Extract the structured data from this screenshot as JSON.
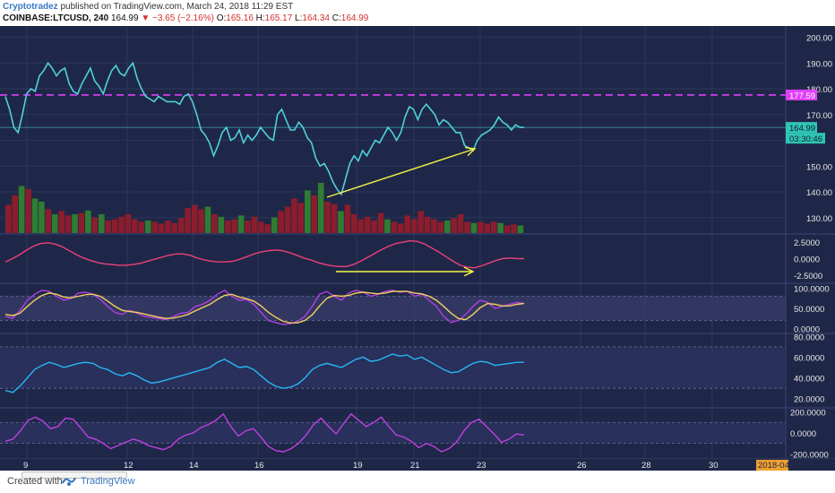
{
  "header": {
    "author": "Cryptotradez",
    "published_text": "published on TradingView.com, March 24, 2018 11:29 EST",
    "symbol": "COINBASE:LTCUSD, 240",
    "last": "164.99",
    "change": "▼ −3.65 (−2.16%)",
    "o_label": "O:",
    "o_value": "165.16",
    "h_label": "H:",
    "h_value": "165.17",
    "l_label": "L:",
    "l_value": "164.34",
    "c_label": "C:",
    "c_value": "164.99"
  },
  "footer": {
    "created": "Created with",
    "brand": "TradingView"
  },
  "colors": {
    "background": "#1f2748",
    "price_line": "#4fd1d9",
    "resistance": "#e040fb",
    "volume_up": "#2e7d32",
    "volume_down": "#8b1d2c",
    "osc1": "#ec407a",
    "stoch_k": "#b040e0",
    "stoch_d": "#f2d15c",
    "rsi": "#29b6f6",
    "cci": "#c040e0",
    "annotation": "#f5f542",
    "axis_text": "#e6e6e6"
  },
  "price_axis": {
    "ticks": [
      "200.00",
      "190.00",
      "180.00",
      "170.00",
      "150.00",
      "140.00",
      "130.00"
    ],
    "resistance_label": "177.59",
    "last_label": "164.99",
    "countdown_label": "03:30:46"
  },
  "price_series": [
    177,
    172,
    165,
    163,
    170,
    178,
    180,
    179,
    185,
    187,
    190,
    188,
    185,
    187,
    188,
    182,
    179,
    178,
    182,
    185,
    188,
    183,
    181,
    178,
    183,
    187,
    189,
    186,
    185,
    188,
    190,
    184,
    180,
    177,
    176,
    175,
    177,
    176,
    175,
    175,
    175,
    174,
    177,
    178,
    175,
    170,
    164,
    162,
    159,
    154,
    158,
    163,
    165,
    160,
    161,
    164,
    159,
    162,
    160,
    162,
    165,
    163,
    161,
    160,
    170,
    172,
    168,
    164,
    164,
    167,
    165,
    161,
    159,
    153,
    150,
    151,
    148,
    144,
    141,
    139,
    145,
    151,
    154,
    152,
    156,
    154,
    157,
    160,
    159,
    162,
    165,
    163,
    160,
    163,
    169,
    173,
    172,
    168,
    172,
    174,
    172,
    170,
    166,
    168,
    167,
    165,
    163,
    163,
    158,
    157,
    156,
    160,
    162,
    163,
    164,
    166,
    169,
    167,
    166,
    164,
    166,
    165,
    165
  ],
  "resistance_value": 177.59,
  "volume_bars": [
    {
      "v": 0.45,
      "up": false
    },
    {
      "v": 0.6,
      "up": false
    },
    {
      "v": 0.75,
      "up": true
    },
    {
      "v": 0.7,
      "up": false
    },
    {
      "v": 0.55,
      "up": true
    },
    {
      "v": 0.5,
      "up": true
    },
    {
      "v": 0.38,
      "up": false
    },
    {
      "v": 0.3,
      "up": true
    },
    {
      "v": 0.35,
      "up": false
    },
    {
      "v": 0.28,
      "up": false
    },
    {
      "v": 0.3,
      "up": true
    },
    {
      "v": 0.32,
      "up": false
    },
    {
      "v": 0.36,
      "up": true
    },
    {
      "v": 0.25,
      "up": false
    },
    {
      "v": 0.3,
      "up": true
    },
    {
      "v": 0.2,
      "up": false
    },
    {
      "v": 0.22,
      "up": false
    },
    {
      "v": 0.26,
      "up": false
    },
    {
      "v": 0.3,
      "up": false
    },
    {
      "v": 0.22,
      "up": false
    },
    {
      "v": 0.18,
      "up": false
    },
    {
      "v": 0.2,
      "up": true
    },
    {
      "v": 0.18,
      "up": false
    },
    {
      "v": 0.15,
      "up": false
    },
    {
      "v": 0.2,
      "up": false
    },
    {
      "v": 0.16,
      "up": false
    },
    {
      "v": 0.24,
      "up": false
    },
    {
      "v": 0.4,
      "up": false
    },
    {
      "v": 0.45,
      "up": false
    },
    {
      "v": 0.38,
      "up": false
    },
    {
      "v": 0.42,
      "up": true
    },
    {
      "v": 0.3,
      "up": false
    },
    {
      "v": 0.26,
      "up": true
    },
    {
      "v": 0.2,
      "up": false
    },
    {
      "v": 0.22,
      "up": false
    },
    {
      "v": 0.28,
      "up": true
    },
    {
      "v": 0.2,
      "up": false
    },
    {
      "v": 0.26,
      "up": false
    },
    {
      "v": 0.18,
      "up": false
    },
    {
      "v": 0.14,
      "up": false
    },
    {
      "v": 0.25,
      "up": true
    },
    {
      "v": 0.35,
      "up": false
    },
    {
      "v": 0.42,
      "up": false
    },
    {
      "v": 0.55,
      "up": false
    },
    {
      "v": 0.48,
      "up": false
    },
    {
      "v": 0.68,
      "up": true
    },
    {
      "v": 0.6,
      "up": false
    },
    {
      "v": 0.8,
      "up": true
    },
    {
      "v": 0.5,
      "up": false
    },
    {
      "v": 0.46,
      "up": false
    },
    {
      "v": 0.35,
      "up": true
    },
    {
      "v": 0.45,
      "up": false
    },
    {
      "v": 0.3,
      "up": false
    },
    {
      "v": 0.22,
      "up": false
    },
    {
      "v": 0.26,
      "up": false
    },
    {
      "v": 0.2,
      "up": false
    },
    {
      "v": 0.32,
      "up": false
    },
    {
      "v": 0.22,
      "up": true
    },
    {
      "v": 0.18,
      "up": false
    },
    {
      "v": 0.15,
      "up": false
    },
    {
      "v": 0.28,
      "up": false
    },
    {
      "v": 0.22,
      "up": false
    },
    {
      "v": 0.35,
      "up": false
    },
    {
      "v": 0.26,
      "up": false
    },
    {
      "v": 0.22,
      "up": false
    },
    {
      "v": 0.18,
      "up": false
    },
    {
      "v": 0.2,
      "up": true
    },
    {
      "v": 0.24,
      "up": false
    },
    {
      "v": 0.3,
      "up": false
    },
    {
      "v": 0.18,
      "up": false
    },
    {
      "v": 0.16,
      "up": true
    },
    {
      "v": 0.18,
      "up": false
    },
    {
      "v": 0.15,
      "up": false
    },
    {
      "v": 0.18,
      "up": false
    },
    {
      "v": 0.16,
      "up": true
    },
    {
      "v": 0.12,
      "up": false
    },
    {
      "v": 0.14,
      "up": false
    },
    {
      "v": 0.12,
      "up": true
    }
  ],
  "osc1_axis": [
    "2.5000",
    "0.0000",
    "-2.5000"
  ],
  "osc1_series": [
    -0.5,
    0.0,
    0.6,
    1.3,
    1.9,
    2.3,
    2.4,
    2.2,
    1.8,
    1.2,
    0.6,
    0.1,
    -0.3,
    -0.6,
    -0.8,
    -0.9,
    -1.0,
    -1.0,
    -0.9,
    -0.7,
    -0.4,
    -0.1,
    0.2,
    0.5,
    0.7,
    0.7,
    0.5,
    0.1,
    -0.2,
    -0.4,
    -0.5,
    -0.5,
    -0.4,
    -0.1,
    0.3,
    0.7,
    1.0,
    1.2,
    1.3,
    1.2,
    0.9,
    0.5,
    0.1,
    -0.2,
    -0.6,
    -0.9,
    -1.1,
    -1.2,
    -1.2,
    -0.9,
    -0.4,
    0.2,
    0.8,
    1.4,
    1.9,
    2.3,
    2.5,
    2.7,
    2.6,
    2.2,
    1.6,
    1.0,
    0.3,
    -0.4,
    -1.0,
    -1.3,
    -1.4,
    -1.1,
    -0.7,
    -0.3,
    0.0,
    0.1,
    0.0,
    0.0
  ],
  "stoch_axis": [
    "100.0000",
    "50.0000",
    "0.0000"
  ],
  "stoch_k": [
    30,
    25,
    45,
    70,
    85,
    95,
    92,
    80,
    70,
    75,
    88,
    90,
    85,
    72,
    55,
    40,
    35,
    45,
    38,
    30,
    28,
    25,
    22,
    30,
    38,
    40,
    55,
    60,
    70,
    85,
    95,
    80,
    70,
    72,
    60,
    40,
    20,
    15,
    10,
    12,
    18,
    30,
    55,
    85,
    92,
    80,
    70,
    88,
    95,
    90,
    80,
    85,
    92,
    95,
    90,
    92,
    80,
    85,
    70,
    55,
    30,
    15,
    20,
    35,
    55,
    70,
    65,
    50,
    55,
    60,
    65,
    62
  ],
  "stoch_d": [
    35,
    32,
    38,
    55,
    70,
    82,
    88,
    85,
    78,
    76,
    80,
    84,
    85,
    80,
    68,
    55,
    45,
    42,
    40,
    36,
    32,
    28,
    25,
    26,
    30,
    35,
    44,
    52,
    60,
    72,
    82,
    85,
    78,
    74,
    68,
    56,
    40,
    28,
    18,
    14,
    14,
    20,
    34,
    56,
    75,
    82,
    80,
    82,
    88,
    90,
    88,
    86,
    88,
    92,
    92,
    92,
    88,
    86,
    80,
    70,
    55,
    38,
    25,
    22,
    35,
    52,
    62,
    60,
    56,
    56,
    60,
    62
  ],
  "rsi_axis": [
    "80.0000",
    "60.0000",
    "40.0000",
    "20.0000"
  ],
  "rsi_series": [
    28,
    26,
    32,
    40,
    48,
    52,
    55,
    53,
    50,
    52,
    54,
    55,
    54,
    50,
    48,
    44,
    42,
    45,
    42,
    38,
    35,
    36,
    38,
    40,
    42,
    44,
    46,
    48,
    50,
    55,
    58,
    54,
    50,
    51,
    48,
    42,
    36,
    32,
    30,
    31,
    34,
    40,
    48,
    52,
    54,
    52,
    50,
    54,
    58,
    60,
    56,
    57,
    60,
    63,
    61,
    62,
    58,
    60,
    56,
    52,
    48,
    45,
    46,
    50,
    54,
    56,
    55,
    52,
    53,
    54,
    55,
    55
  ],
  "cci_axis": [
    "200.0000",
    "0.0000",
    "-200.0000"
  ],
  "cci_series": [
    -80,
    -60,
    20,
    120,
    150,
    110,
    40,
    60,
    140,
    130,
    50,
    -40,
    -60,
    -100,
    -150,
    -120,
    -90,
    -60,
    -80,
    -120,
    -140,
    -160,
    -130,
    -60,
    -20,
    0,
    50,
    80,
    120,
    180,
    60,
    -30,
    20,
    40,
    -40,
    -130,
    -170,
    -180,
    -150,
    -100,
    -20,
    80,
    140,
    60,
    -10,
    90,
    180,
    120,
    60,
    100,
    150,
    60,
    -20,
    -40,
    -80,
    -140,
    -100,
    -130,
    -180,
    -150,
    -90,
    20,
    100,
    130,
    60,
    -10,
    -90,
    -60,
    -10,
    -20
  ],
  "x_axis": {
    "labels": [
      "9",
      "12",
      "14",
      "16",
      "19",
      "21",
      "23",
      "26",
      "28",
      "30"
    ],
    "end_label": "2018-04"
  }
}
